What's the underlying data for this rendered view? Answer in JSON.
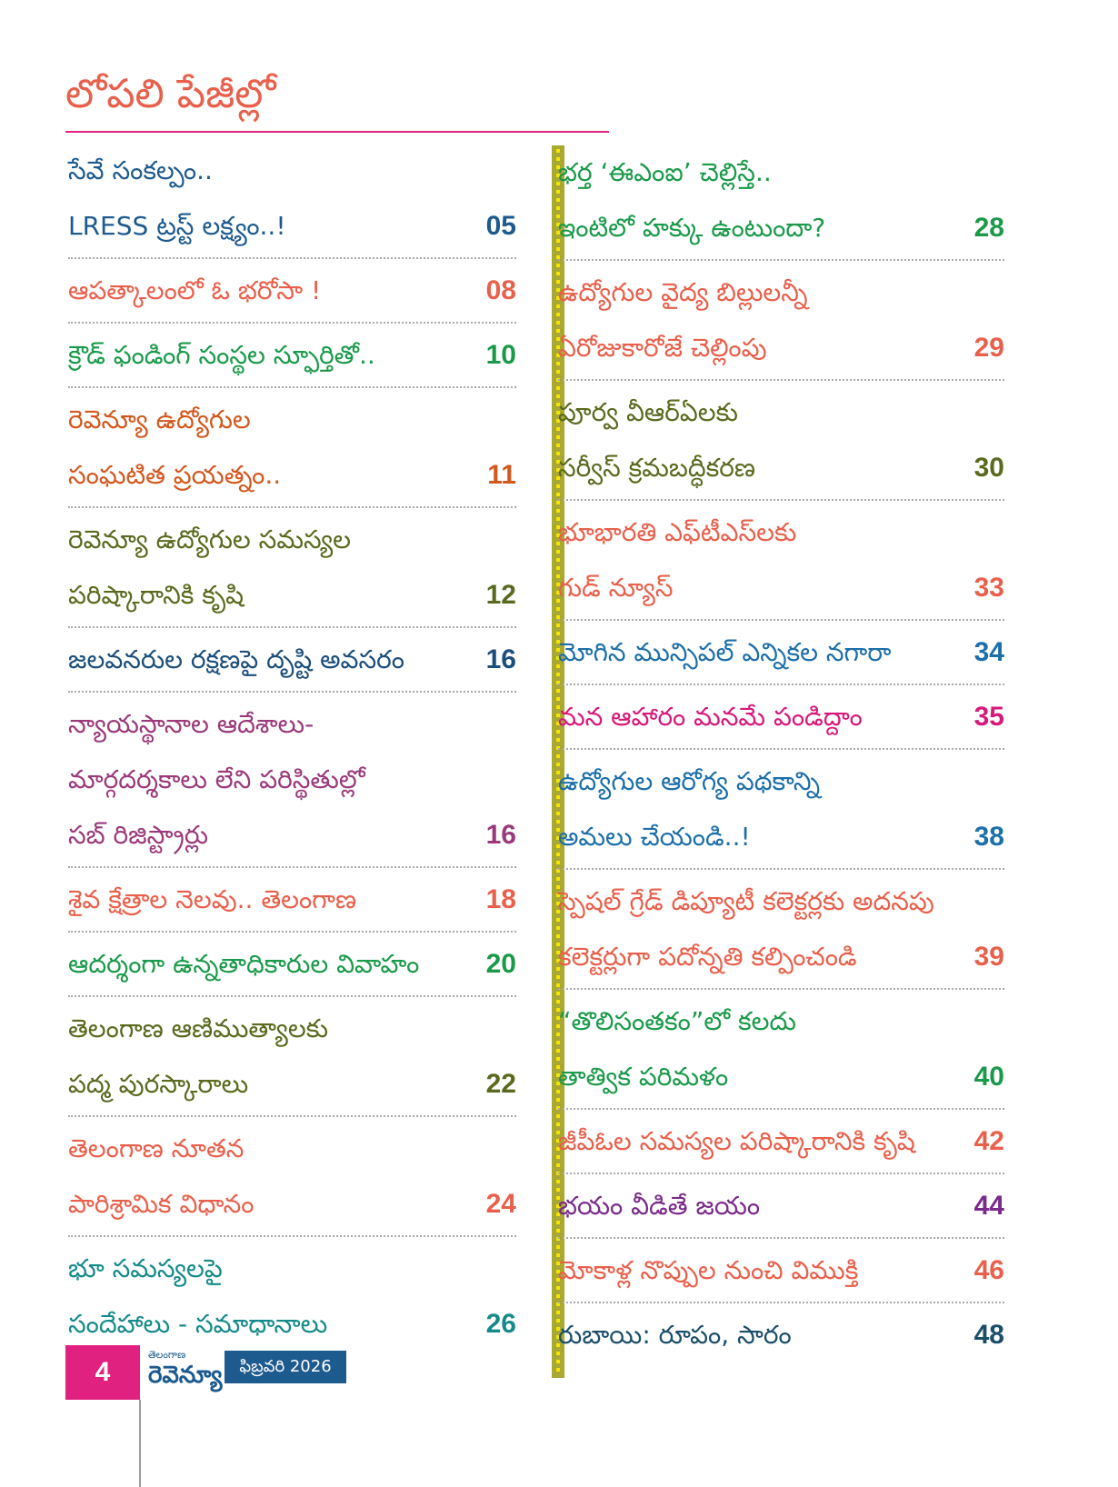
{
  "header": {
    "title": "లోపలి పేజీల్లో"
  },
  "columns": [
    {
      "entries": [
        {
          "lines": [
            "సేవే సంకల్పం..",
            "LRESS ట్రస్ట్ లక్ష్యం..!"
          ],
          "page": "05",
          "color": "#1d5a8e"
        },
        {
          "lines": [
            "ఆపత్కాలంలో ఓ భరోసా !"
          ],
          "page": "08",
          "color": "#e8604c"
        },
        {
          "lines": [
            "క్రౌడ్ ఫండింగ్ సంస్థల స్ఫూర్తితో.."
          ],
          "page": "10",
          "color": "#1a9a4a"
        },
        {
          "lines": [
            "రెవెన్యూ ఉద్యోగుల",
            "సంఘటిత ప్రయత్నం.."
          ],
          "page": "11",
          "color": "#d2581e"
        },
        {
          "lines": [
            "రెవెన్యూ  ఉద్యోగుల సమస్యల",
            "పరిష్కారానికి కృషి"
          ],
          "page": "12",
          "color": "#5a6a1e"
        },
        {
          "lines": [
            "జలవనరుల రక్షణపై దృష్టి అవసరం"
          ],
          "page": "16",
          "color": "#1b4e7a"
        },
        {
          "lines": [
            "న్యాయస్థానాల ఆదేశాలు-",
            "మార్గదర్శకాలు లేని పరిస్థితుల్లో",
            "సబ్ రిజిస్ట్రార్లు"
          ],
          "page": "16",
          "color": "#9a3a7a"
        },
        {
          "lines": [
            "శైవ క్షేత్రాల నెలవు.. తెలంగాణ"
          ],
          "page": "18",
          "color": "#e8604c"
        },
        {
          "lines": [
            "ఆదర్శంగా ఉన్నతాధికారుల వివాహం"
          ],
          "page": "20",
          "color": "#1a9a4a"
        },
        {
          "lines": [
            "తెలంగాణ ఆణిముత్యాలకు",
            "పద్మ పురస్కారాలు"
          ],
          "page": "22",
          "color": "#5a6a1e"
        },
        {
          "lines": [
            "తెలంగాణ నూతన",
            "పారిశ్రామిక విధానం"
          ],
          "page": "24",
          "color": "#e8604c"
        },
        {
          "lines": [
            "భూ సమస్యలపై",
            "సందేహాలు - సమాధానాలు"
          ],
          "page": "26",
          "color": "#168a8a"
        }
      ]
    },
    {
      "entries": [
        {
          "lines": [
            "భర్త ‘ఈఎంఐ’ చెల్లిస్తే..",
            "ఇంటిలో హక్కు ఉంటుందా?"
          ],
          "page": "28",
          "color": "#1a9a4a"
        },
        {
          "lines": [
            "ఉద్యోగుల వైద్య బిల్లులన్నీ",
            "ఏరోజుకారోజే చెల్లింపు"
          ],
          "page": "29",
          "color": "#e8604c"
        },
        {
          "lines": [
            "పూర్వ వీఆర్ఏలకు",
            "సర్వీస్ క్రమబద్ధీకరణ"
          ],
          "page": "30",
          "color": "#5a6a1e"
        },
        {
          "lines": [
            "భూభారతి ఎఫ్‌టీఎస్‌లకు",
            "గుడ్ న్యూస్"
          ],
          "page": "33",
          "color": "#e8604c"
        },
        {
          "lines": [
            "మోగిన మున్సిపల్ ఎన్నికల నగారా"
          ],
          "page": "34",
          "color": "#1d6fa8"
        },
        {
          "lines": [
            "మన ఆహారం మనమే పండిద్దాం"
          ],
          "page": "35",
          "color": "#d6197a"
        },
        {
          "lines": [
            "ఉద్యోగుల ఆరోగ్య పథకాన్ని",
            "అమలు చేయండి..!"
          ],
          "page": "38",
          "color": "#1d6fa8"
        },
        {
          "lines": [
            "స్పెషల్ గ్రేడ్ డిప్యూటీ కలెక్టర్లకు అదనపు",
            "కలెక్టర్లుగా పదోన్నతి కల్పించండి"
          ],
          "page": "39",
          "color": "#e8604c"
        },
        {
          "lines": [
            "“తొలిసంతకం”లో కలదు",
            "తాత్విక పరిమళం"
          ],
          "page": "40",
          "color": "#1a9a4a"
        },
        {
          "lines": [
            "జీపీఓల సమస్యల పరిష్కారానికి కృషి"
          ],
          "page": "42",
          "color": "#e8604c"
        },
        {
          "lines": [
            "భయం వీడితే జయం"
          ],
          "page": "44",
          "color": "#7a2a8a"
        },
        {
          "lines": [
            "మోకాళ్ల నొప్పుల నుంచి విముక్తి"
          ],
          "page": "46",
          "color": "#e8604c"
        },
        {
          "lines": [
            "రుబాయి: రూపం, సారం"
          ],
          "page": "48",
          "color": "#1b4e6a"
        }
      ]
    }
  ],
  "footer": {
    "page_number": "4",
    "brand_small": "తెలంగాణ",
    "brand": "రెవెన్యూ",
    "issue": "ఫిబ్రవరి 2026"
  }
}
